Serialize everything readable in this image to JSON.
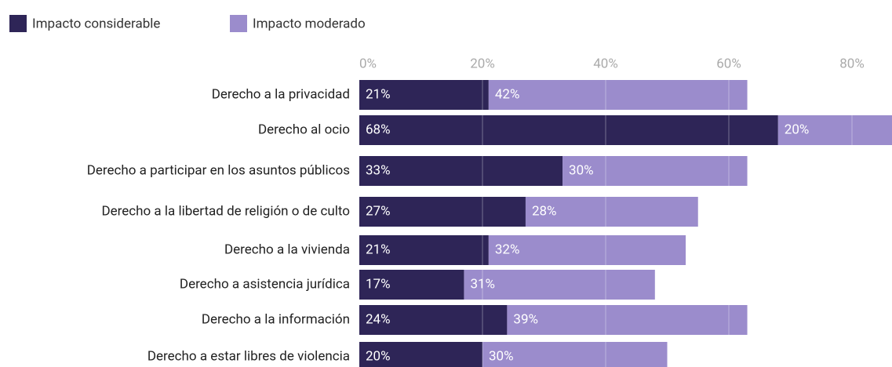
{
  "chart_data": {
    "type": "stacked-bar-horizontal",
    "categories": [
      "Derecho a la privacidad",
      "Derecho al ocio",
      "Derecho a participar en los asuntos públicos",
      "Derecho a la libertad de religión o de culto",
      "Derecho a la vivienda",
      "Derecho a asistencia jurídica",
      "Derecho a la información",
      "Derecho a estar libres de violencia"
    ],
    "series": [
      {
        "name": "Impacto considerable",
        "color": "#2e2557",
        "values": [
          21,
          68,
          33,
          27,
          21,
          17,
          24,
          20
        ],
        "value_labels": [
          "21%",
          "68%",
          "33%",
          "27%",
          "21%",
          "17%",
          "24%",
          "20%"
        ]
      },
      {
        "name": "Impacto moderado",
        "color": "#9b8ccc",
        "values": [
          42,
          20,
          30,
          28,
          32,
          31,
          39,
          30
        ],
        "value_labels": [
          "42%",
          "20%",
          "30%",
          "28%",
          "32%",
          "31%",
          "39%",
          "30%"
        ]
      }
    ],
    "xlim": [
      0,
      86.5
    ],
    "xticks": [
      {
        "value": 0,
        "label": "0%"
      },
      {
        "value": 20,
        "label": "20%"
      },
      {
        "value": 40,
        "label": "40%"
      },
      {
        "value": 60,
        "label": "60%"
      },
      {
        "value": 80,
        "label": "80%"
      }
    ],
    "grid": true,
    "legend": "top-left"
  }
}
